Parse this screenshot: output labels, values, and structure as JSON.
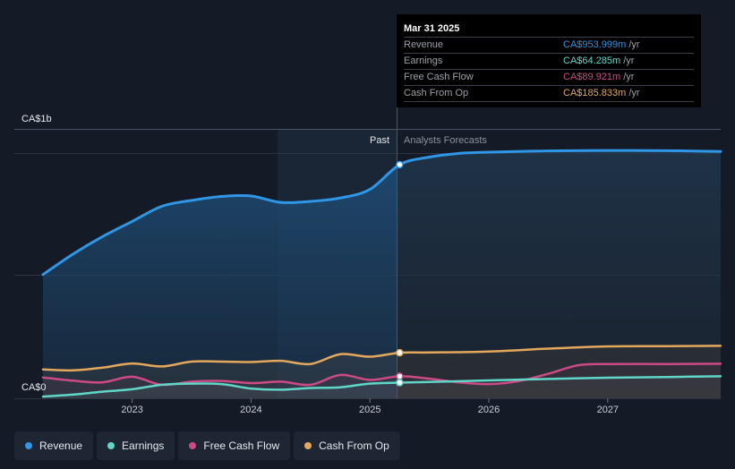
{
  "chart_data": {
    "type": "line",
    "y_top_label": "CA$1b",
    "y_bottom_label": "CA$0",
    "ylim": [
      0,
      1100
    ],
    "x_ticks": [
      "2023",
      "2024",
      "2025",
      "2026",
      "2027"
    ],
    "past_label": "Past",
    "forecast_label": "Analysts Forecasts",
    "series": [
      {
        "name": "Revenue",
        "color": "#2f96e8",
        "points": [
          [
            2022.25,
            505
          ],
          [
            2022.5,
            588
          ],
          [
            2022.75,
            660
          ],
          [
            2023.0,
            722
          ],
          [
            2023.25,
            784
          ],
          [
            2023.5,
            808
          ],
          [
            2023.75,
            824
          ],
          [
            2024.0,
            826
          ],
          [
            2024.25,
            800
          ],
          [
            2024.5,
            804
          ],
          [
            2024.75,
            818
          ],
          [
            2025.0,
            853
          ],
          [
            2025.25,
            954
          ],
          [
            2025.5,
            985
          ],
          [
            2025.75,
            1000
          ],
          [
            2026.0,
            1005
          ],
          [
            2026.5,
            1010
          ],
          [
            2027.0,
            1012
          ],
          [
            2027.5,
            1011
          ],
          [
            2027.95,
            1008
          ]
        ]
      },
      {
        "name": "Earnings",
        "color": "#5fd6c8",
        "points": [
          [
            2022.25,
            7
          ],
          [
            2022.5,
            15
          ],
          [
            2022.75,
            27
          ],
          [
            2023.0,
            37
          ],
          [
            2023.25,
            55
          ],
          [
            2023.5,
            60
          ],
          [
            2023.75,
            58
          ],
          [
            2024.0,
            40
          ],
          [
            2024.25,
            35
          ],
          [
            2024.5,
            42
          ],
          [
            2024.75,
            45
          ],
          [
            2025.0,
            60
          ],
          [
            2025.25,
            64
          ],
          [
            2025.5,
            67
          ],
          [
            2026.0,
            73
          ],
          [
            2026.5,
            79
          ],
          [
            2027.0,
            84
          ],
          [
            2027.5,
            87
          ],
          [
            2027.95,
            90
          ]
        ]
      },
      {
        "name": "Free Cash Flow",
        "color": "#cc4a86",
        "points": [
          [
            2022.25,
            85
          ],
          [
            2022.5,
            72
          ],
          [
            2022.75,
            65
          ],
          [
            2023.0,
            88
          ],
          [
            2023.25,
            55
          ],
          [
            2023.5,
            68
          ],
          [
            2023.75,
            71
          ],
          [
            2024.0,
            62
          ],
          [
            2024.25,
            68
          ],
          [
            2024.5,
            55
          ],
          [
            2024.75,
            95
          ],
          [
            2025.0,
            75
          ],
          [
            2025.25,
            90
          ],
          [
            2025.5,
            80
          ],
          [
            2025.75,
            65
          ],
          [
            2026.0,
            58
          ],
          [
            2026.25,
            70
          ],
          [
            2026.5,
            100
          ],
          [
            2026.75,
            135
          ],
          [
            2027.0,
            140
          ],
          [
            2027.5,
            140
          ],
          [
            2027.95,
            141
          ]
        ]
      },
      {
        "name": "Cash From Op",
        "color": "#e3a85c",
        "points": [
          [
            2022.25,
            118
          ],
          [
            2022.5,
            114
          ],
          [
            2022.75,
            125
          ],
          [
            2023.0,
            142
          ],
          [
            2023.25,
            130
          ],
          [
            2023.5,
            150
          ],
          [
            2023.75,
            150
          ],
          [
            2024.0,
            148
          ],
          [
            2024.25,
            153
          ],
          [
            2024.5,
            140
          ],
          [
            2024.75,
            180
          ],
          [
            2025.0,
            170
          ],
          [
            2025.25,
            186
          ],
          [
            2025.5,
            187
          ],
          [
            2026.0,
            191
          ],
          [
            2026.5,
            203
          ],
          [
            2027.0,
            212
          ],
          [
            2027.5,
            213
          ],
          [
            2027.95,
            214
          ]
        ]
      }
    ]
  },
  "tooltip": {
    "date": "Mar 31 2025",
    "rows": [
      {
        "label": "Revenue",
        "value": "CA$953.999m",
        "unit": "/yr",
        "color": "#2f96e8"
      },
      {
        "label": "Earnings",
        "value": "CA$64.285m",
        "unit": "/yr",
        "color": "#5fd6c8"
      },
      {
        "label": "Free Cash Flow",
        "value": "CA$89.921m",
        "unit": "/yr",
        "color": "#cc4a86"
      },
      {
        "label": "Cash From Op",
        "value": "CA$185.833m",
        "unit": "/yr",
        "color": "#e3a85c"
      }
    ]
  },
  "legend": [
    {
      "label": "Revenue",
      "color": "#2f96e8"
    },
    {
      "label": "Earnings",
      "color": "#5fd6c8"
    },
    {
      "label": "Free Cash Flow",
      "color": "#cc4a86"
    },
    {
      "label": "Cash From Op",
      "color": "#e3a85c"
    }
  ]
}
